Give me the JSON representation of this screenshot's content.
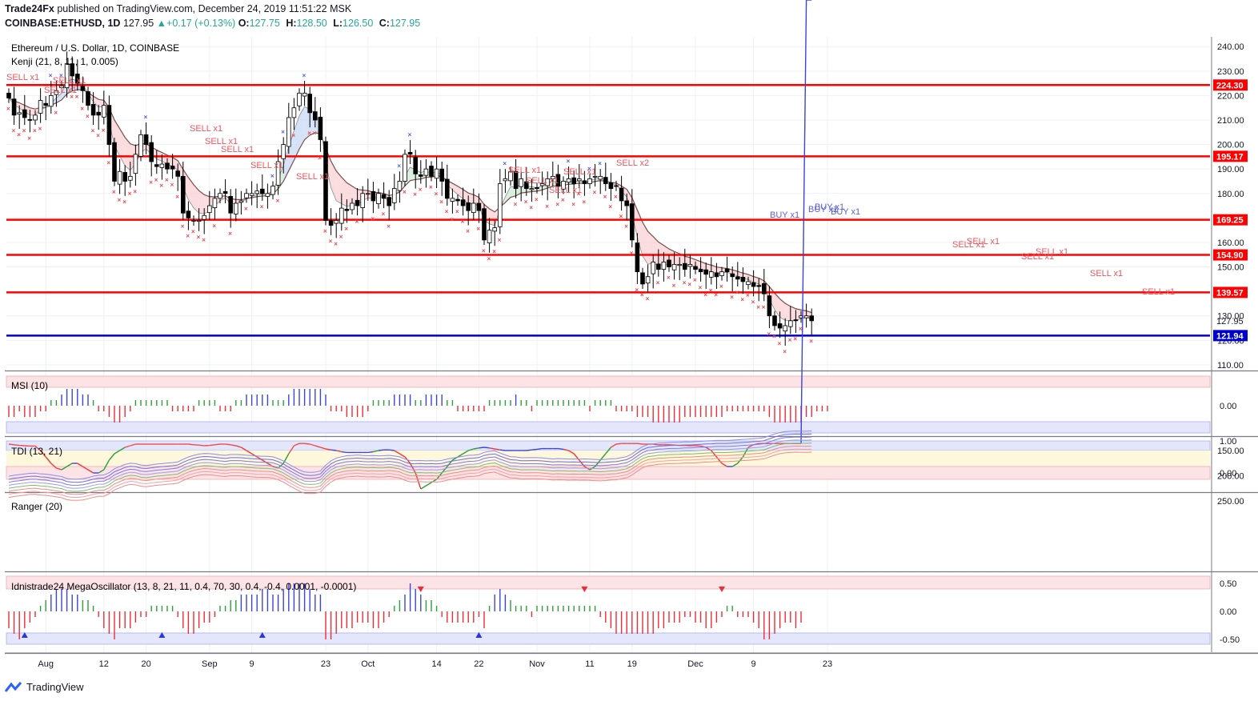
{
  "header": {
    "publisher": "Trade24Fx",
    "published_text": "published on TradingView.com, December 24, 2019 11:51:22 MSK",
    "symbol": "COINBASE:ETHUSD, 1D",
    "last": "127.95",
    "change": "+0.17 (+0.13%)",
    "o_label": "O:",
    "o_value": "127.75",
    "h_label": "H:",
    "h_value": "128.50",
    "l_label": "L:",
    "l_value": "126.50",
    "c_label": "C:",
    "c_value": "127.95"
  },
  "main_title": "Ethereum / U.S. Dollar, 1D, COINBASE",
  "kenji_label": "Kenji (21, 8, 11, 1, 0.005)",
  "msi_label": "MSI (10)",
  "tdi_label": "TDI (13, 21)",
  "ranger_label": "Ranger (20)",
  "mega_label": "Idnistrade24 MegaOscillator (13, 8, 21, 11, 0.4, 70, 30, 0.4, -0.4, 0.0001, -0.0001)",
  "brand": "TradingView",
  "x_ticks": [
    "Aug",
    "12",
    "20",
    "Sep",
    "9",
    "23",
    "Oct",
    "14",
    "22",
    "Nov",
    "11",
    "19",
    "Dec",
    "9",
    "23"
  ],
  "signals": [
    "SELL x1",
    "SELL x1",
    "SELL x1",
    "SELL x1",
    "SELL x1",
    "SELL x1",
    "SELL x1",
    "SELL x1",
    "SELL x1",
    "SELL x1",
    "SELL x1",
    "SELL x1",
    "SELL x2",
    "BUY x1",
    "BUY x1",
    "BUY x1",
    "BUY x1",
    "SELL x1",
    "SELL x1",
    "SELL x1",
    "SELL x1",
    "SELL x1",
    "SELL x1"
  ],
  "chart_data": [
    {
      "type": "candlestick",
      "title": "Ethereum / U.S. Dollar, 1D, COINBASE",
      "y_ticks": [
        "240.00",
        "230.00",
        "220.00",
        "210.00",
        "200.00",
        "190.00",
        "180.00",
        "170.00",
        "160.00",
        "150.00",
        "140.00",
        "130.00",
        "120.00",
        "110.00"
      ],
      "ylim": [
        108,
        244
      ],
      "dates": [
        "Jul 25",
        "Jul 26",
        "Jul 27",
        "Jul 28",
        "Jul 29",
        "Jul 30",
        "Jul 31",
        "Aug 1",
        "Aug 2",
        "Aug 3",
        "Aug 4",
        "Aug 5",
        "Aug 6",
        "Aug 7",
        "Aug 8",
        "Aug 9",
        "Aug 10",
        "Aug 11",
        "Aug 12",
        "Aug 13",
        "Aug 14",
        "Aug 15",
        "Aug 16",
        "Aug 17",
        "Aug 18",
        "Aug 19",
        "Aug 20",
        "Aug 21",
        "Aug 22",
        "Aug 23",
        "Aug 24",
        "Aug 25",
        "Aug 26",
        "Aug 27",
        "Aug 28",
        "Aug 29",
        "Aug 30",
        "Aug 31",
        "Sep 1",
        "Sep 2",
        "Sep 3",
        "Sep 4",
        "Sep 5",
        "Sep 6",
        "Sep 7",
        "Sep 8",
        "Sep 9",
        "Sep 10",
        "Sep 11",
        "Sep 12",
        "Sep 13",
        "Sep 14",
        "Sep 15",
        "Sep 16",
        "Sep 17",
        "Sep 18",
        "Sep 19",
        "Sep 20",
        "Sep 21",
        "Sep 22",
        "Sep 23",
        "Sep 24",
        "Sep 25",
        "Sep 26",
        "Sep 27",
        "Sep 28",
        "Sep 29",
        "Sep 30",
        "Oct 1",
        "Oct 2",
        "Oct 3",
        "Oct 4",
        "Oct 5",
        "Oct 6",
        "Oct 7",
        "Oct 8",
        "Oct 9",
        "Oct 10",
        "Oct 11",
        "Oct 12",
        "Oct 13",
        "Oct 14",
        "Oct 15",
        "Oct 16",
        "Oct 17",
        "Oct 18",
        "Oct 19",
        "Oct 20",
        "Oct 21",
        "Oct 22",
        "Oct 23",
        "Oct 24",
        "Oct 25",
        "Oct 26",
        "Oct 27",
        "Oct 28",
        "Oct 29",
        "Oct 30",
        "Oct 31",
        "Nov 1",
        "Nov 2",
        "Nov 3",
        "Nov 4",
        "Nov 5",
        "Nov 6",
        "Nov 7",
        "Nov 8",
        "Nov 9",
        "Nov 10",
        "Nov 11",
        "Nov 12",
        "Nov 13",
        "Nov 14",
        "Nov 15",
        "Nov 16",
        "Nov 17",
        "Nov 18",
        "Nov 19",
        "Nov 20",
        "Nov 21",
        "Nov 22",
        "Nov 23",
        "Nov 24",
        "Nov 25",
        "Nov 26",
        "Nov 27",
        "Nov 28",
        "Nov 29",
        "Nov 30",
        "Dec 1",
        "Dec 2",
        "Dec 3",
        "Dec 4",
        "Dec 5",
        "Dec 6",
        "Dec 7",
        "Dec 8",
        "Dec 9",
        "Dec 10",
        "Dec 11",
        "Dec 12",
        "Dec 13",
        "Dec 14",
        "Dec 15",
        "Dec 16",
        "Dec 17",
        "Dec 18",
        "Dec 19",
        "Dec 20",
        "Dec 21",
        "Dec 22",
        "Dec 23",
        "Dec 24"
      ],
      "close": [
        219,
        212,
        213,
        211,
        210,
        212,
        218,
        216,
        220,
        222,
        224,
        233,
        228,
        225,
        222,
        216,
        212,
        212,
        216,
        200,
        185,
        189,
        185,
        187,
        196,
        204,
        200,
        193,
        191,
        192,
        190,
        190,
        187,
        172,
        170,
        169,
        169,
        171,
        175,
        178,
        180,
        180,
        172,
        176,
        177,
        180,
        180,
        181,
        180,
        180,
        183,
        193,
        200,
        211,
        215,
        221,
        221,
        213,
        210,
        202,
        169,
        167,
        169,
        174,
        173,
        176,
        175,
        180,
        180,
        177,
        180,
        178,
        175,
        182,
        185,
        196,
        196,
        188,
        187,
        190,
        187,
        190,
        185,
        178,
        178,
        177,
        175,
        173,
        176,
        173,
        161,
        165,
        166,
        184,
        186,
        189,
        182,
        186,
        182,
        182,
        182,
        184,
        186,
        187,
        183,
        185,
        186,
        184,
        186,
        184,
        186,
        187,
        187,
        184,
        182,
        183,
        177,
        175,
        161,
        148,
        143,
        146,
        152,
        149,
        152,
        150,
        151,
        151,
        149,
        151,
        149,
        148,
        147,
        148,
        146,
        148,
        148,
        146,
        145,
        144,
        144,
        142,
        142,
        139,
        130,
        126,
        125,
        126,
        128,
        128,
        130,
        130,
        128
      ]
    },
    {
      "type": "horizontal_levels",
      "levels": [
        {
          "value": "224.30",
          "color": "#ff0000"
        },
        {
          "value": "195.17",
          "color": "#ff0000"
        },
        {
          "value": "169.25",
          "color": "#ff0000"
        },
        {
          "value": "154.90",
          "color": "#ff0000"
        },
        {
          "value": "139.57",
          "color": "#ff0000"
        },
        {
          "value": "121.94",
          "color": "#0000cc"
        }
      ],
      "last_price_label": "127.95"
    },
    {
      "type": "bar",
      "title": "MSI (10)",
      "y_ticks": [
        "0.00"
      ],
      "values": [
        -2,
        -2,
        -1,
        -2,
        -2,
        -2,
        -1,
        -1,
        1,
        1,
        2,
        3,
        3,
        3,
        2,
        2,
        1,
        -1,
        -1,
        -2,
        -3,
        -3,
        -2,
        -1,
        1,
        1,
        1,
        1,
        1,
        1,
        1,
        -1,
        -1,
        -1,
        -1,
        -1,
        1,
        1,
        1,
        1,
        -1,
        -1,
        -1,
        1,
        1,
        2,
        2,
        2,
        2,
        2,
        1,
        1,
        1,
        2,
        3,
        3,
        3,
        3,
        3,
        3,
        2,
        -1,
        -1,
        -1,
        -2,
        -2,
        -2,
        -2,
        -1,
        1,
        1,
        1,
        1,
        2,
        2,
        2,
        2,
        1,
        1,
        2,
        2,
        2,
        2,
        1,
        1,
        -1,
        -1,
        -1,
        -1,
        -1,
        -1,
        1,
        1,
        1,
        1,
        1,
        2,
        1,
        1,
        -1,
        1,
        1,
        1,
        1,
        1,
        1,
        1,
        1,
        1,
        1,
        -1,
        1,
        1,
        1,
        1,
        -1,
        -1,
        -1,
        -1,
        -2,
        -2,
        -2,
        -3,
        -3,
        -3,
        -3,
        -3,
        -3,
        -2,
        -2,
        -2,
        -2,
        -2,
        -2,
        -2,
        -2,
        -1,
        -1,
        -1,
        -1,
        -1,
        -1,
        -1,
        -1,
        -2,
        -3,
        -3,
        -3,
        -3,
        -3,
        -3,
        -2,
        -2,
        -1,
        -1,
        -1
      ]
    },
    {
      "type": "line",
      "title": "TDI (13, 21)",
      "y_ticks": [
        "1.00",
        "0.00"
      ],
      "values": [
        0.9,
        0.88,
        0.86,
        0.85,
        0.84,
        0.84,
        0.7,
        0.5,
        0.3,
        0.15,
        0.1,
        0.2,
        0.3,
        0.3,
        0.2,
        0.1,
        0.0,
        0.0,
        0.1,
        0.4,
        0.6,
        0.7,
        0.8,
        0.85,
        0.9,
        0.9,
        0.9,
        0.9,
        0.9,
        0.9,
        0.9,
        0.9,
        0.9,
        0.9,
        0.9,
        0.88,
        0.87,
        0.85,
        0.86,
        0.88,
        0.9,
        0.9,
        0.88,
        0.85,
        0.8,
        0.7,
        0.6,
        0.5,
        0.4,
        0.3,
        0.2,
        0.15,
        0.3,
        0.6,
        0.85,
        0.92,
        0.92,
        0.9,
        0.85,
        0.8,
        0.75,
        0.72,
        0.7,
        0.66,
        0.64,
        0.64,
        0.64,
        0.64,
        0.64,
        0.66,
        0.7,
        0.72,
        0.72,
        0.7,
        0.6,
        0.5,
        0.3,
        0.0,
        -0.5,
        -0.4,
        -0.3,
        -0.2,
        0.0,
        0.2,
        0.4,
        0.5,
        0.6,
        0.7,
        0.75,
        0.78,
        0.8,
        0.78,
        0.75,
        0.72,
        0.7,
        0.7,
        0.7,
        0.7,
        0.7,
        0.72,
        0.74,
        0.76,
        0.76,
        0.76,
        0.76,
        0.74,
        0.7,
        0.6,
        0.4,
        0.2,
        0.1,
        0.2,
        0.4,
        0.6,
        0.8,
        0.9,
        0.92,
        0.92,
        0.92,
        0.92,
        0.9,
        0.9,
        0.9,
        0.88,
        0.88,
        0.88,
        0.87,
        0.86,
        0.86,
        0.85,
        0.85,
        0.84,
        0.8,
        0.7,
        0.5,
        0.3,
        0.2,
        0.2,
        0.3,
        0.5,
        0.8,
        0.88,
        0.92,
        0.92,
        0.92,
        0.92,
        0.92,
        0.92,
        0.92,
        0.92,
        0.92
      ]
    },
    {
      "type": "line",
      "title": "Ranger (20)",
      "y_ticks": [
        "250.00",
        "200.00",
        "150.00"
      ]
    },
    {
      "type": "bar",
      "title": "Idnistrade24 MegaOscillator (13, 8, 21, 11, 0.4, 70, 30, 0.4, -0.4, 0.0001, -0.0001)",
      "y_ticks": [
        "0.50",
        "0.00",
        "-0.50"
      ],
      "values": [
        -0.3,
        -0.4,
        -0.5,
        -0.3,
        -0.2,
        -0.1,
        0.1,
        0.2,
        0.3,
        0.4,
        0.4,
        0.4,
        0.3,
        0.3,
        0.2,
        0.2,
        0.1,
        -0.1,
        -0.3,
        -0.4,
        -0.5,
        -0.3,
        -0.3,
        -0.3,
        -0.2,
        -0.1,
        -0.1,
        0.1,
        0.1,
        0.1,
        0.1,
        0.1,
        -0.1,
        -0.3,
        -0.4,
        -0.4,
        -0.3,
        -0.2,
        -0.2,
        -0.1,
        0.1,
        0.1,
        0.2,
        0.2,
        0.3,
        0.3,
        0.3,
        0.3,
        0.4,
        0.4,
        0.3,
        0.3,
        0.4,
        0.5,
        0.5,
        0.5,
        0.5,
        0.4,
        0.3,
        0.3,
        -0.5,
        -0.5,
        -0.4,
        -0.3,
        -0.3,
        -0.3,
        -0.2,
        -0.2,
        -0.2,
        -0.3,
        -0.3,
        -0.2,
        -0.1,
        0.1,
        0.2,
        0.3,
        0.5,
        0.4,
        0.3,
        0.2,
        0.2,
        0.1,
        -0.1,
        -0.2,
        -0.2,
        -0.2,
        -0.2,
        -0.2,
        -0.2,
        -0.1,
        -0.3,
        0.1,
        0.3,
        0.4,
        0.3,
        0.2,
        0.1,
        0.1,
        0.1,
        -0.1,
        0.1,
        0.1,
        0.1,
        0.1,
        0.1,
        0.1,
        0.1,
        0.1,
        0.1,
        0.1,
        0.1,
        0.1,
        -0.1,
        -0.2,
        -0.3,
        -0.4,
        -0.4,
        -0.4,
        -0.4,
        -0.4,
        -0.4,
        -0.4,
        -0.4,
        -0.3,
        -0.3,
        -0.2,
        -0.2,
        -0.2,
        -0.1,
        -0.1,
        -0.2,
        -0.2,
        -0.3,
        -0.3,
        -0.2,
        -0.1,
        0.1,
        0.1,
        -0.1,
        -0.1,
        -0.1,
        -0.2,
        -0.3,
        -0.5,
        -0.5,
        -0.4,
        -0.3,
        -0.2,
        -0.2,
        -0.3,
        -0.2
      ]
    }
  ]
}
